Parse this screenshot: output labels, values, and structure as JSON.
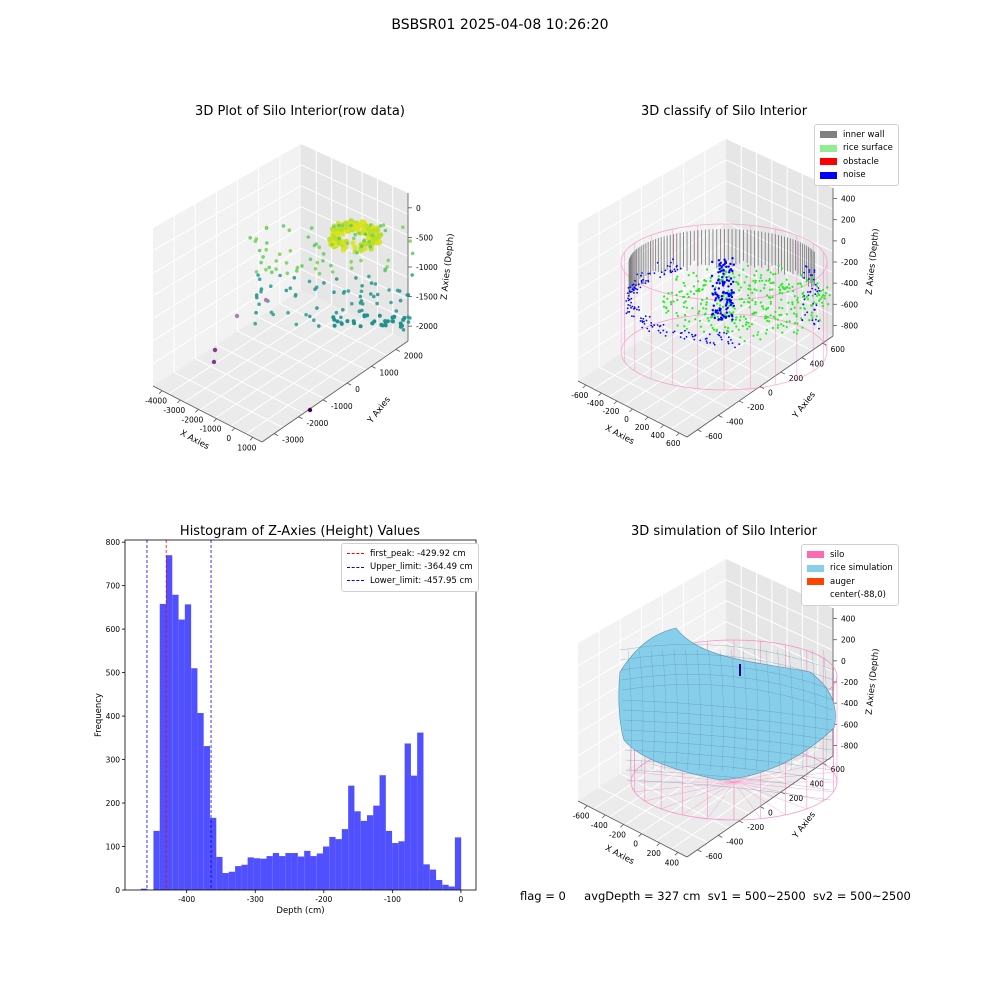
{
  "suptitle": "BSBSR01 2025-04-08 10:26:20",
  "panels": {
    "raw": {
      "title": "3D Plot of Silo Interior(row data)",
      "xlabel": "X Axies",
      "ylabel": "Y Axies",
      "zlabel": "Z Axies (Depth)",
      "xticks": [
        "-4000",
        "-3000",
        "-2000",
        "-1000",
        "0",
        "1000"
      ],
      "yticks": [
        "2000",
        "1000",
        "0",
        "-1000",
        "-2000",
        "-3000"
      ],
      "zticks": [
        "0",
        "-500",
        "-1000",
        "-1500",
        "-2000"
      ]
    },
    "classify": {
      "title": "3D classify of Silo Interior",
      "xlabel": "X Axies",
      "ylabel": "Y Axies",
      "zlabel": "Z Axies (Depth)",
      "xticks": [
        "-600",
        "-400",
        "-200",
        "0",
        "200",
        "400",
        "600"
      ],
      "yticks": [
        "600",
        "400",
        "200",
        "0",
        "-200",
        "-400",
        "-600"
      ],
      "zticks": [
        "400",
        "200",
        "0",
        "-200",
        "-400",
        "-600",
        "-800"
      ],
      "legend": [
        {
          "label": "inner wall",
          "color": "#808080"
        },
        {
          "label": "rice surface",
          "color": "#90ee90"
        },
        {
          "label": "obstacle",
          "color": "#ff0000"
        },
        {
          "label": "noise",
          "color": "#0000ff"
        }
      ]
    },
    "simulation": {
      "title": "3D simulation of Silo Interior",
      "xlabel": "X Axies",
      "ylabel": "Y Axies",
      "zlabel": "Z Axies (Depth)",
      "xticks": [
        "-600",
        "-400",
        "-200",
        "0",
        "200",
        "400"
      ],
      "yticks": [
        "600",
        "400",
        "200",
        "0",
        "-200",
        "-400",
        "-600"
      ],
      "zticks": [
        "400",
        "200",
        "0",
        "-200",
        "-400",
        "-600",
        "-800"
      ],
      "legend": [
        {
          "label": "silo",
          "color": "#ff69b4"
        },
        {
          "label": "rice simulation",
          "color": "#87ceeb"
        },
        {
          "label": "auger",
          "color": "#ff4500"
        },
        {
          "label": "center(-88,0)",
          "color": ""
        }
      ]
    }
  },
  "status": {
    "flag": "flag = 0",
    "avg": "avgDepth = 327 cm",
    "sv1": "sv1 = 500~2500",
    "sv2": "sv2 = 500~2500"
  },
  "chart_data": {
    "type": "bar",
    "title": "Histogram of Z-Axies (Height) Values",
    "xlabel": "Depth (cm)",
    "ylabel": "Frequency",
    "xlim": [
      -490,
      22
    ],
    "ylim": [
      0,
      805
    ],
    "xticks": [
      -400,
      -300,
      -200,
      -100,
      0
    ],
    "yticks": [
      0,
      100,
      200,
      300,
      400,
      500,
      600,
      700,
      800
    ],
    "bin_width": 9.16,
    "bin_starts": [
      -466.8,
      -457.6,
      -448.5,
      -439.3,
      -430.2,
      -421.0,
      -411.8,
      -402.7,
      -393.5,
      -384.4,
      -375.2,
      -366.0,
      -356.9,
      -347.7,
      -338.6,
      -329.4,
      -320.2,
      -311.1,
      -301.9,
      -292.8,
      -283.6,
      -274.4,
      -265.3,
      -256.1,
      -247.0,
      -237.8,
      -228.6,
      -219.5,
      -210.3,
      -201.2,
      -192.0,
      -182.8,
      -173.7,
      -164.5,
      -155.4,
      -146.2,
      -137.0,
      -127.9,
      -118.7,
      -109.6,
      -100.4,
      -91.2,
      -82.1,
      -72.9,
      -63.8,
      -54.6,
      -45.4,
      -36.3,
      -27.1,
      -18.0,
      -8.8
    ],
    "values": [
      3,
      0,
      136,
      658,
      770,
      679,
      622,
      657,
      510,
      407,
      331,
      166,
      76,
      39,
      42,
      55,
      58,
      75,
      73,
      72,
      78,
      85,
      78,
      85,
      85,
      77,
      90,
      78,
      84,
      100,
      122,
      117,
      140,
      240,
      181,
      159,
      172,
      194,
      264,
      136,
      108,
      112,
      337,
      263,
      362,
      59,
      47,
      23,
      12,
      8,
      121
    ],
    "lines": [
      {
        "name": "first_peak: -429.92 cm",
        "x": -429.92,
        "color": "#ff0000"
      },
      {
        "name": "Upper_limit: -364.49 cm",
        "x": -364.49,
        "color": "#0000ff"
      },
      {
        "name": "Lower_limit: -457.95 cm",
        "x": -457.95,
        "color": "#0000ff"
      }
    ],
    "bar_color": "#5050ff"
  }
}
